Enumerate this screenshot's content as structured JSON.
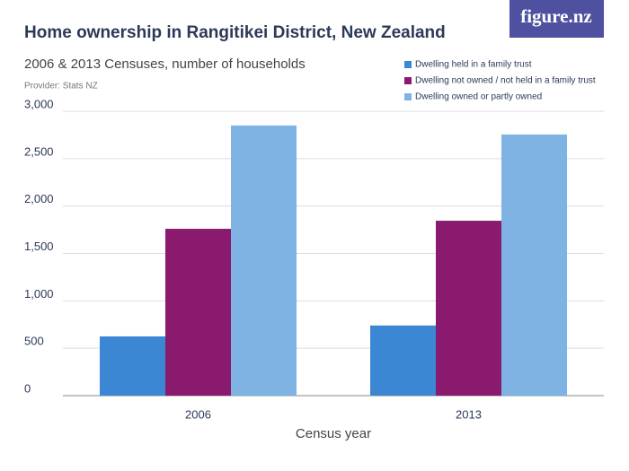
{
  "chart_data": {
    "type": "bar",
    "title": "Home ownership in Rangitikei District, New Zealand",
    "subtitle": "2006 & 2013 Censuses, number of households",
    "provider": "Provider: Stats NZ",
    "logo": "figure.nz",
    "x_label": "Census year",
    "categories": [
      "2006",
      "2013"
    ],
    "series": [
      {
        "name": "Dwelling held in a family trust",
        "color": "#3b87d4",
        "values": [
          625,
          740
        ]
      },
      {
        "name": "Dwelling not owned / not held in a family trust",
        "color": "#8a1a6e",
        "values": [
          1760,
          1845
        ]
      },
      {
        "name": "Dwelling owned or partly owned",
        "color": "#7fb3e3",
        "values": [
          2850,
          2755
        ]
      }
    ],
    "ylim": [
      0,
      3000
    ],
    "yticks": [
      0,
      500,
      {
        "value": 1000,
        "label": "1,000"
      },
      {
        "value": 1500,
        "label": "1,500"
      },
      {
        "value": 2000,
        "label": "2,000"
      },
      {
        "value": 2500,
        "label": "2,500"
      },
      {
        "value": 3000,
        "label": "3,000"
      }
    ],
    "grid": true
  }
}
